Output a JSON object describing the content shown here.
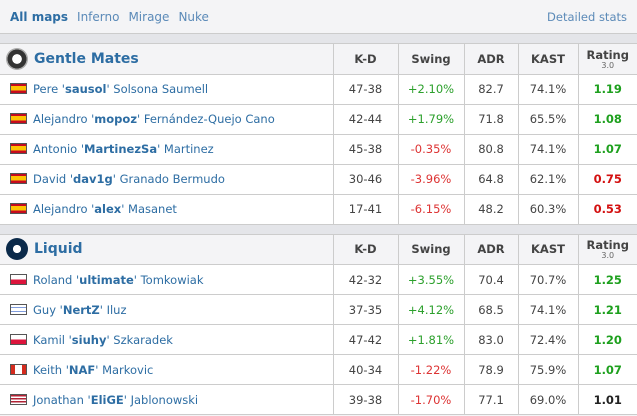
{
  "nav": {
    "maps": [
      "All maps",
      "Inferno",
      "Mirage",
      "Nuke"
    ],
    "detailed": "Detailed stats"
  },
  "columns": {
    "kd": "K-D",
    "swing": "Swing",
    "adr": "ADR",
    "kast": "KAST",
    "rating": "Rating",
    "rating_ver": "3.0"
  },
  "teams": [
    {
      "name": "Gentle Mates",
      "players": [
        {
          "flag": "es",
          "first": "Pere '",
          "nick": "sausol",
          "last": "' Solsona Saumell",
          "kd": "47-38",
          "swing": "+2.10%",
          "adr": "82.7",
          "kast": "74.1%",
          "rating": "1.19"
        },
        {
          "flag": "es",
          "first": "Alejandro '",
          "nick": "mopoz",
          "last": "' Fernández-Quejo Cano",
          "kd": "42-44",
          "swing": "+1.79%",
          "adr": "71.8",
          "kast": "65.5%",
          "rating": "1.08"
        },
        {
          "flag": "es",
          "first": "Antonio '",
          "nick": "MartinezSa",
          "last": "' Martinez",
          "kd": "45-38",
          "swing": "-0.35%",
          "adr": "80.8",
          "kast": "74.1%",
          "rating": "1.07"
        },
        {
          "flag": "es",
          "first": "David '",
          "nick": "dav1g",
          "last": "' Granado Bermudo",
          "kd": "30-46",
          "swing": "-3.96%",
          "adr": "64.8",
          "kast": "62.1%",
          "rating": "0.75"
        },
        {
          "flag": "es",
          "first": "Alejandro '",
          "nick": "alex",
          "last": "' Masanet",
          "kd": "17-41",
          "swing": "-6.15%",
          "adr": "48.2",
          "kast": "60.3%",
          "rating": "0.53"
        }
      ]
    },
    {
      "name": "Liquid",
      "players": [
        {
          "flag": "pl",
          "first": "Roland '",
          "nick": "ultimate",
          "last": "' Tomkowiak",
          "kd": "42-32",
          "swing": "+3.55%",
          "adr": "70.4",
          "kast": "70.7%",
          "rating": "1.25"
        },
        {
          "flag": "il",
          "first": "Guy '",
          "nick": "NertZ",
          "last": "' Iluz",
          "kd": "37-35",
          "swing": "+4.12%",
          "adr": "68.5",
          "kast": "74.1%",
          "rating": "1.21"
        },
        {
          "flag": "pl",
          "first": "Kamil '",
          "nick": "siuhy",
          "last": "' Szkaradek",
          "kd": "47-42",
          "swing": "+1.81%",
          "adr": "83.0",
          "kast": "72.4%",
          "rating": "1.20"
        },
        {
          "flag": "ca",
          "first": "Keith '",
          "nick": "NAF",
          "last": "' Markovic",
          "kd": "40-34",
          "swing": "-1.22%",
          "adr": "78.9",
          "kast": "75.9%",
          "rating": "1.07"
        },
        {
          "flag": "us",
          "first": "Jonathan '",
          "nick": "EliGE",
          "last": "' Jablonowski",
          "kd": "39-38",
          "swing": "-1.70%",
          "adr": "77.1",
          "kast": "69.0%",
          "rating": "1.01"
        }
      ]
    }
  ]
}
